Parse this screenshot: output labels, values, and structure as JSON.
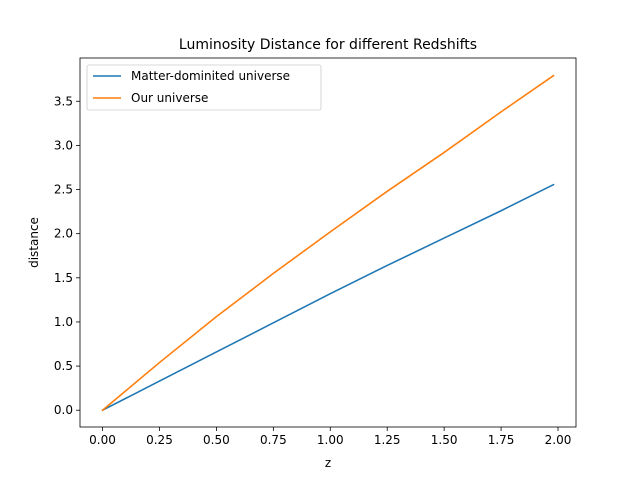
{
  "chart_data": {
    "type": "line",
    "title": "Luminosity Distance for different Redshifts",
    "xlabel": "z",
    "ylabel": "distance",
    "xlim": [
      -0.099,
      2.079
    ],
    "ylim": [
      -0.19,
      3.99
    ],
    "x_ticks": [
      "0.00",
      "0.25",
      "0.50",
      "0.75",
      "1.00",
      "1.25",
      "1.50",
      "1.75",
      "2.00"
    ],
    "y_ticks": [
      "0.0",
      "0.5",
      "1.0",
      "1.5",
      "2.0",
      "2.5",
      "3.0",
      "3.5"
    ],
    "x_tick_values": [
      0,
      0.25,
      0.5,
      0.75,
      1.0,
      1.25,
      1.5,
      1.75,
      2.0
    ],
    "y_tick_values": [
      0,
      0.5,
      1.0,
      1.5,
      2.0,
      2.5,
      3.0,
      3.5
    ],
    "grid": false,
    "legend_position": "top-left",
    "series": [
      {
        "name": "Matter-dominited universe",
        "color": "#1f77b4",
        "x": [
          0,
          0.25,
          0.5,
          0.75,
          1.0,
          1.25,
          1.5,
          1.75,
          1.98
        ],
        "y": [
          0,
          0.33,
          0.66,
          0.99,
          1.32,
          1.64,
          1.95,
          2.26,
          2.555
        ]
      },
      {
        "name": "Our universe",
        "color": "#ff7f0e",
        "x": [
          0,
          0.25,
          0.5,
          0.75,
          1.0,
          1.25,
          1.5,
          1.75,
          1.98
        ],
        "y": [
          0,
          0.54,
          1.06,
          1.55,
          2.02,
          2.48,
          2.92,
          3.38,
          3.79
        ]
      }
    ]
  }
}
